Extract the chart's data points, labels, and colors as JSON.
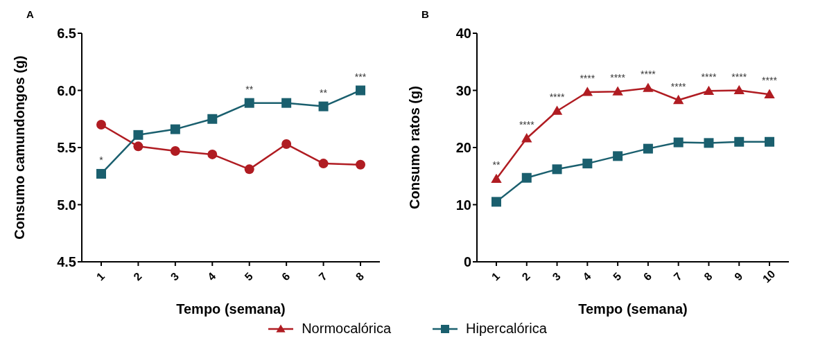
{
  "chart_data": [
    {
      "type": "line",
      "title": "A",
      "xlabel": "Tempo (semana)",
      "ylabel": "Consumo camundongos (g)",
      "categories": [
        "1",
        "2",
        "3",
        "4",
        "5",
        "6",
        "7",
        "8"
      ],
      "ylim": [
        4.5,
        6.5
      ],
      "yticks": [
        {
          "value": 4.5,
          "label": "4.5"
        },
        {
          "value": 5,
          "label": "5.0"
        },
        {
          "value": 5.5,
          "label": "5.5"
        },
        {
          "value": 6,
          "label": "6.0"
        },
        {
          "value": 6.5,
          "label": "6.5"
        }
      ],
      "grid": false,
      "legend": false,
      "series": [
        {
          "color": "#b01c22",
          "marker": "circle",
          "values": [
            5.7,
            5.51,
            5.47,
            5.44,
            5.31,
            5.53,
            5.36,
            5.35
          ]
        },
        {
          "color": "#1a5f6e",
          "marker": "square",
          "values": [
            5.27,
            5.61,
            5.66,
            5.75,
            5.89,
            5.89,
            5.86,
            6.0
          ]
        }
      ],
      "annotations": [
        {
          "text": "*",
          "x": "1",
          "y": 5.27
        },
        {
          "text": "**",
          "x": "5",
          "y": 5.89
        },
        {
          "text": "**",
          "x": "7",
          "y": 5.86
        },
        {
          "text": "***",
          "x": "8",
          "y": 6.0
        }
      ]
    },
    {
      "type": "line",
      "title": "B",
      "xlabel": "Tempo (semana)",
      "ylabel": "Consumo ratos (g)",
      "categories": [
        "1",
        "2",
        "3",
        "4",
        "5",
        "6",
        "7",
        "8",
        "9",
        "10"
      ],
      "ylim": [
        0,
        40
      ],
      "yticks": [
        0,
        10,
        20,
        30,
        40
      ],
      "grid": false,
      "legend": "bottom",
      "series": [
        {
          "name": "Normocalórica",
          "color": "#b01c22",
          "marker": "triangle",
          "values": [
            14.5,
            21.6,
            26.4,
            29.7,
            29.8,
            30.4,
            28.3,
            29.9,
            30.0,
            29.3
          ]
        },
        {
          "name": "Hipercalórica",
          "color": "#1a5f6e",
          "marker": "square",
          "values": [
            10.5,
            14.7,
            16.2,
            17.2,
            18.5,
            19.8,
            20.9,
            20.8,
            21.0,
            21.0
          ]
        }
      ],
      "annotations": [
        {
          "text": "**",
          "x": "1",
          "y": 14.5
        },
        {
          "text": "****",
          "x": "2",
          "y": 21.6
        },
        {
          "text": "****",
          "x": "3",
          "y": 26.4
        },
        {
          "text": "****",
          "x": "4",
          "y": 29.7
        },
        {
          "text": "****",
          "x": "5",
          "y": 29.8
        },
        {
          "text": "****",
          "x": "6",
          "y": 30.4
        },
        {
          "text": "****",
          "x": "7",
          "y": 28.3
        },
        {
          "text": "****",
          "x": "8",
          "y": 29.9
        },
        {
          "text": "****",
          "x": "9",
          "y": 30.0
        },
        {
          "text": "****",
          "x": "10",
          "y": 29.3
        }
      ]
    }
  ]
}
